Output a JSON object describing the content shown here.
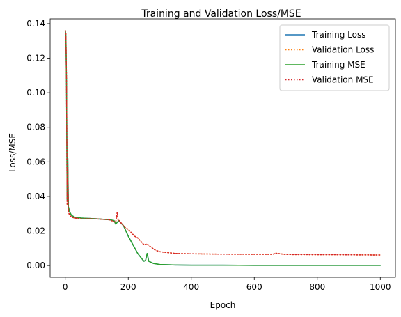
{
  "chart_data": {
    "type": "line",
    "title": "Training and Validation Loss/MSE",
    "xlabel": "Epoch",
    "ylabel": "Loss/MSE",
    "xlim": [
      -48,
      1048
    ],
    "ylim": [
      -0.0068,
      0.1428
    ],
    "xticks": [
      0,
      200,
      400,
      600,
      800,
      1000
    ],
    "xtick_labels": [
      "0",
      "200",
      "400",
      "600",
      "800",
      "1000"
    ],
    "yticks": [
      0.0,
      0.02,
      0.04,
      0.06,
      0.08,
      0.1,
      0.12,
      0.14
    ],
    "ytick_labels": [
      "0.00",
      "0.02",
      "0.04",
      "0.06",
      "0.08",
      "0.10",
      "0.12",
      "0.14"
    ],
    "grid": false,
    "legend_position": "top-right",
    "series": [
      {
        "name": "Training Loss",
        "color": "#1f77b4",
        "style": "solid",
        "x": [
          0,
          2,
          4,
          6,
          8,
          10,
          14,
          20,
          30,
          50,
          100,
          140,
          155,
          160,
          165,
          170,
          185,
          200,
          215,
          230,
          245,
          250,
          255,
          260,
          265,
          280,
          300,
          350,
          400,
          500,
          600,
          700,
          800,
          900,
          1000
        ],
        "y": [
          0.136,
          0.133,
          0.105,
          0.038,
          0.062,
          0.034,
          0.031,
          0.029,
          0.028,
          0.0275,
          0.027,
          0.0265,
          0.026,
          0.024,
          0.025,
          0.026,
          0.023,
          0.017,
          0.012,
          0.007,
          0.0035,
          0.0025,
          0.003,
          0.007,
          0.0025,
          0.0012,
          0.0006,
          0.0003,
          0.0002,
          0.0002,
          0.0001,
          0.0001,
          0.0001,
          0.0001,
          0.0001
        ]
      },
      {
        "name": "Validation Loss",
        "color": "#ff7f0e",
        "style": "dotted",
        "x": [
          0,
          2,
          4,
          6,
          8,
          10,
          14,
          20,
          30,
          50,
          100,
          140,
          160,
          165,
          168,
          172,
          180,
          190,
          200,
          210,
          220,
          230,
          240,
          250,
          260,
          270,
          285,
          300,
          350,
          400,
          500,
          600,
          660,
          665,
          700,
          800,
          850,
          900,
          1000
        ],
        "y": [
          0.136,
          0.134,
          0.107,
          0.035,
          0.057,
          0.031,
          0.029,
          0.028,
          0.0275,
          0.027,
          0.027,
          0.0265,
          0.025,
          0.031,
          0.026,
          0.026,
          0.024,
          0.022,
          0.021,
          0.019,
          0.017,
          0.016,
          0.014,
          0.012,
          0.0125,
          0.011,
          0.009,
          0.008,
          0.007,
          0.0068,
          0.0066,
          0.0065,
          0.0065,
          0.0072,
          0.0064,
          0.0063,
          0.0063,
          0.0062,
          0.0061
        ]
      },
      {
        "name": "Training MSE",
        "color": "#2ca02c",
        "style": "solid",
        "x": [
          0,
          2,
          4,
          6,
          8,
          10,
          14,
          20,
          30,
          50,
          100,
          140,
          155,
          160,
          165,
          170,
          185,
          200,
          215,
          230,
          245,
          250,
          255,
          260,
          265,
          280,
          300,
          350,
          400,
          500,
          600,
          700,
          800,
          900,
          1000
        ],
        "y": [
          0.136,
          0.133,
          0.105,
          0.038,
          0.062,
          0.034,
          0.031,
          0.029,
          0.028,
          0.0275,
          0.027,
          0.0265,
          0.026,
          0.024,
          0.025,
          0.026,
          0.023,
          0.017,
          0.012,
          0.007,
          0.0035,
          0.0025,
          0.003,
          0.007,
          0.0025,
          0.0012,
          0.0006,
          0.0003,
          0.0002,
          0.0002,
          0.0001,
          0.0001,
          0.0001,
          0.0001,
          0.0001
        ]
      },
      {
        "name": "Validation MSE",
        "color": "#d62728",
        "style": "dotted",
        "x": [
          0,
          2,
          4,
          6,
          8,
          10,
          14,
          20,
          30,
          50,
          100,
          140,
          160,
          165,
          168,
          172,
          180,
          190,
          200,
          210,
          220,
          230,
          240,
          250,
          260,
          270,
          285,
          300,
          350,
          400,
          500,
          600,
          660,
          665,
          700,
          800,
          850,
          900,
          1000
        ],
        "y": [
          0.136,
          0.134,
          0.107,
          0.035,
          0.057,
          0.031,
          0.029,
          0.028,
          0.0275,
          0.027,
          0.027,
          0.0265,
          0.025,
          0.031,
          0.026,
          0.026,
          0.024,
          0.022,
          0.021,
          0.019,
          0.017,
          0.016,
          0.014,
          0.012,
          0.0125,
          0.011,
          0.009,
          0.008,
          0.007,
          0.0068,
          0.0066,
          0.0065,
          0.0065,
          0.0072,
          0.0064,
          0.0063,
          0.0063,
          0.0062,
          0.0061
        ]
      }
    ]
  }
}
